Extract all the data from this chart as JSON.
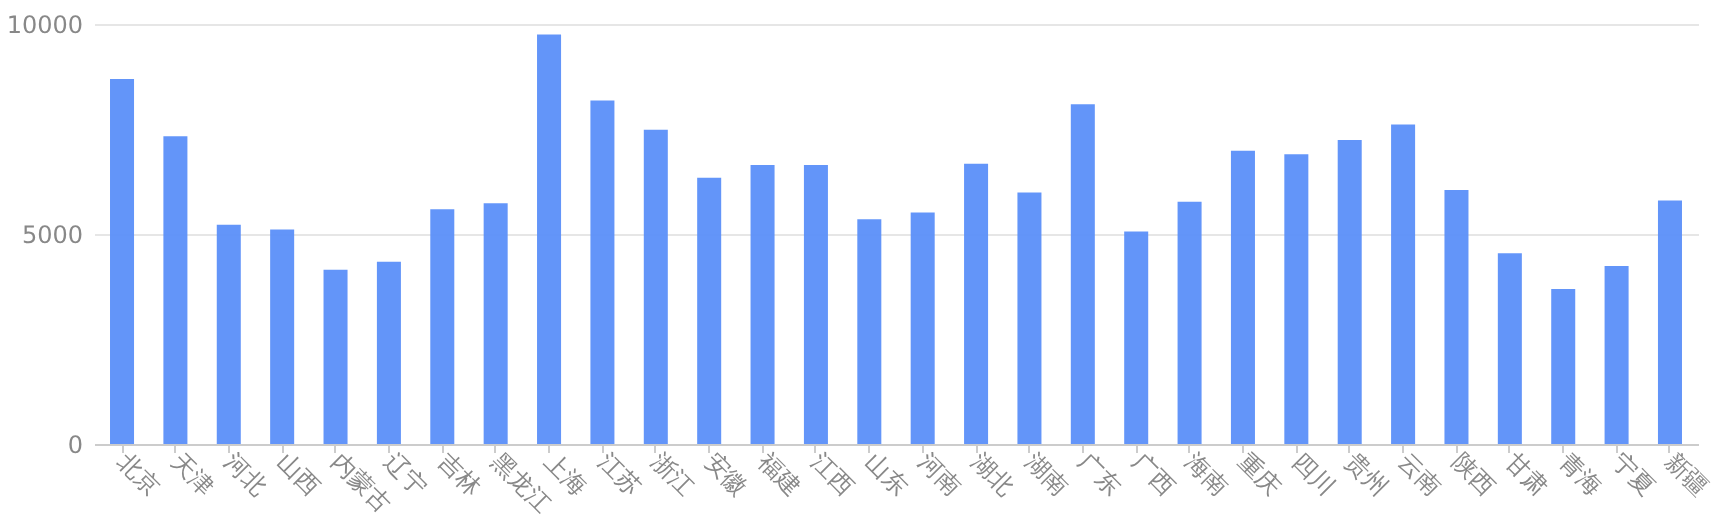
{
  "chart_data": {
    "type": "bar",
    "categories": [
      "北京",
      "天津",
      "河北",
      "山西",
      "内蒙古",
      "辽宁",
      "吉林",
      "黑龙江",
      "上海",
      "江苏",
      "浙江",
      "安徽",
      "福建",
      "江西",
      "山东",
      "河南",
      "湖北",
      "湖南",
      "广东",
      "广西",
      "海南",
      "重庆",
      "四川",
      "贵州",
      "云南",
      "陕西",
      "甘肃",
      "青海",
      "宁夏",
      "新疆"
    ],
    "values": [
      8690,
      7330,
      5220,
      5110,
      4150,
      4340,
      5590,
      5730,
      9750,
      8180,
      7480,
      6340,
      6640,
      6640,
      5350,
      5510,
      6670,
      5990,
      8090,
      5060,
      5770,
      6980,
      6900,
      7240,
      7610,
      6050,
      4540,
      3690,
      4240,
      5800
    ],
    "color": "#5b8ff9",
    "ylim": [
      0,
      10000
    ],
    "yticks": [
      0,
      5000,
      10000
    ],
    "grid": "y"
  }
}
